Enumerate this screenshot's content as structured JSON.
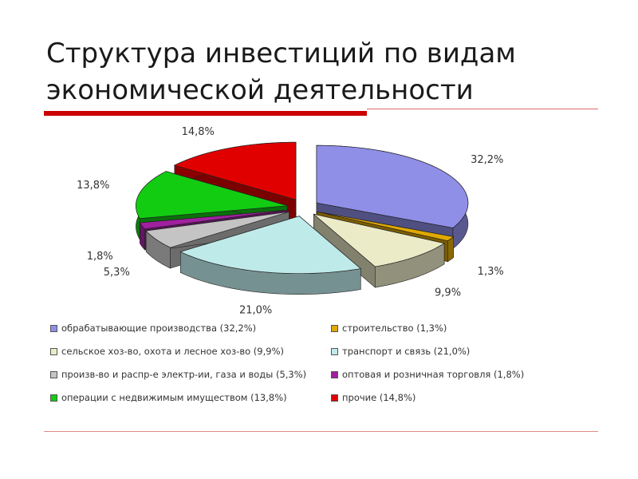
{
  "slide": {
    "title": "Структура инвестиций по видам экономической деятельности"
  },
  "chart_data": {
    "type": "pie",
    "title": "",
    "slices": [
      {
        "name": "обрабатывающие производства",
        "value": 32.2,
        "label": "32,2%",
        "legend": "обрабатывающие производства (32,2%)",
        "color": "#8f8fe8"
      },
      {
        "name": "строительство",
        "value": 1.3,
        "label": "1,3%",
        "legend": "строительство (1,3%)",
        "color": "#e0a800"
      },
      {
        "name": "сельское хоз-во, охота и лесное хоз-во",
        "value": 9.9,
        "label": "9,9%",
        "legend": "сельское хоз-во, охота и лесное хоз-во (9,9%)",
        "color": "#ebebc8"
      },
      {
        "name": "транспорт и связь",
        "value": 21.0,
        "label": "21,0%",
        "legend": "транспорт и связь (21,0%)",
        "color": "#bfeaea"
      },
      {
        "name": "произв-во и распр-е электр-ии, газа и воды",
        "value": 5.3,
        "label": "5,3%",
        "legend": "произв-во и распр-е электр-ии, газа и воды (5,3%)",
        "color": "#c4c4c4"
      },
      {
        "name": "оптовая и розничная торговля",
        "value": 1.8,
        "label": "1,8%",
        "legend": "оптовая и розничная торговля (1,8%)",
        "color": "#a020a0"
      },
      {
        "name": "операции с недвижимым имуществом",
        "value": 13.8,
        "label": "13,8%",
        "legend": "операции с недвижимым имуществом (13,8%)",
        "color": "#12cc12"
      },
      {
        "name": "прочие",
        "value": 14.8,
        "label": "14,8%",
        "legend": "прочие (14,8%)",
        "color": "#e00000"
      }
    ],
    "legend_position": "bottom",
    "exploded": true,
    "style": "3d"
  }
}
